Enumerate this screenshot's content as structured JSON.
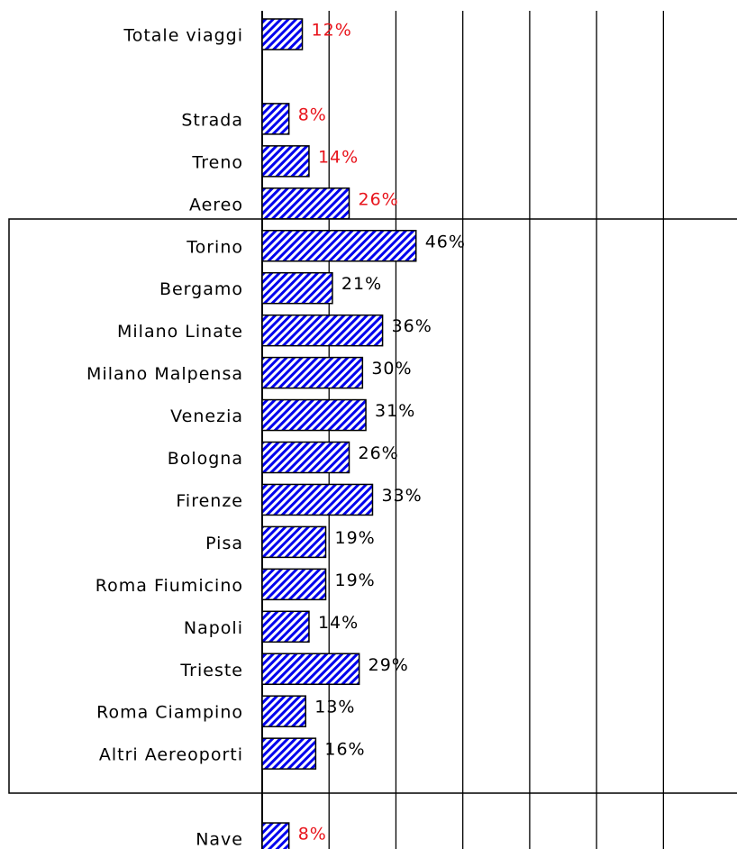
{
  "chart_data": {
    "type": "hbar",
    "categories": [
      "Totale viaggi",
      null,
      "Strada",
      "Treno",
      "Aereo",
      "Torino",
      "Bergamo",
      "Milano Linate",
      "Milano Malpensa",
      "Venezia",
      "Bologna",
      "Firenze",
      "Pisa",
      "Roma Fiumicino",
      "Napoli",
      "Trieste",
      "Roma Ciampino",
      "Altri Aereoporti",
      null,
      "Nave"
    ],
    "values": [
      12,
      null,
      8,
      14,
      26,
      46,
      21,
      36,
      30,
      31,
      26,
      33,
      19,
      19,
      14,
      29,
      13,
      16,
      null,
      8
    ],
    "value_labels": [
      "12%",
      null,
      "8%",
      "14%",
      "26%",
      "46%",
      "21%",
      "36%",
      "30%",
      "31%",
      "26%",
      "33%",
      "19%",
      "19%",
      "14%",
      "29%",
      "13%",
      "16%",
      null,
      "8%"
    ],
    "label_colors": [
      "#e8141c",
      null,
      "#e8141c",
      "#e8141c",
      "#e8141c",
      "#000000",
      "#000000",
      "#000000",
      "#000000",
      "#000000",
      "#000000",
      "#000000",
      "#000000",
      "#000000",
      "#000000",
      "#000000",
      "#000000",
      "#000000",
      null,
      "#e8141c"
    ],
    "color": "#0000ee",
    "xlim": [
      0,
      142
    ],
    "xticks": [
      0,
      20,
      40,
      60,
      80,
      100,
      120
    ],
    "grid": true
  }
}
